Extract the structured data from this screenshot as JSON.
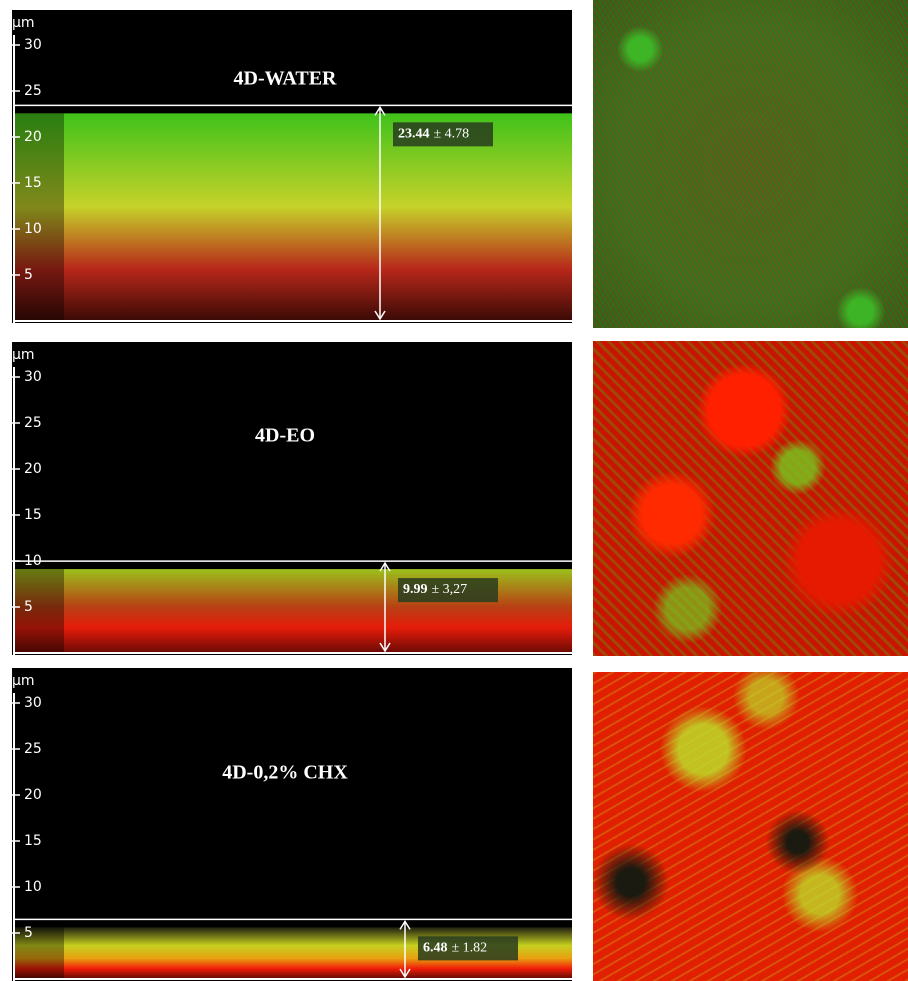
{
  "panels": [
    {
      "title": "4D-WATER",
      "unit": "µm",
      "ticks": [
        5,
        10,
        15,
        20,
        25,
        30
      ],
      "thickness": 23.44,
      "sd": "± 4.78"
    },
    {
      "title": "4D-EO",
      "unit": "µm",
      "ticks": [
        5,
        10,
        15,
        20,
        25,
        30
      ],
      "thickness": 9.99,
      "sd": "± 3,27"
    },
    {
      "title": "4D-0,2% CHX",
      "unit": "µm",
      "ticks": [
        5,
        10,
        15,
        20,
        25,
        30
      ],
      "thickness": 6.48,
      "sd": "± 1.82"
    }
  ]
}
